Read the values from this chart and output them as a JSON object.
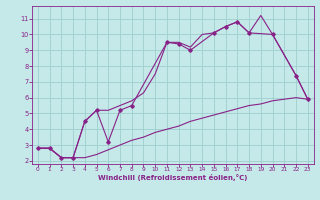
{
  "xlabel": "Windchill (Refroidissement éolien,°C)",
  "xlim": [
    -0.5,
    23.5
  ],
  "ylim": [
    1.8,
    11.8
  ],
  "xticks": [
    0,
    1,
    2,
    3,
    4,
    5,
    6,
    7,
    8,
    9,
    10,
    11,
    12,
    13,
    14,
    15,
    16,
    17,
    18,
    19,
    20,
    21,
    22,
    23
  ],
  "yticks": [
    2,
    3,
    4,
    5,
    6,
    7,
    8,
    9,
    10,
    11
  ],
  "bg_color": "#c5e8e8",
  "grid_color": "#9ecece",
  "line_color": "#882288",
  "series_main_x": [
    0,
    1,
    2,
    3,
    4,
    5,
    6,
    7,
    8,
    11,
    12,
    13,
    15,
    16,
    17,
    18,
    20,
    22,
    23
  ],
  "series_main_y": [
    2.8,
    2.8,
    2.2,
    2.2,
    4.5,
    5.2,
    3.2,
    5.2,
    5.5,
    9.5,
    9.4,
    9.0,
    10.1,
    10.5,
    10.8,
    10.1,
    10.0,
    7.4,
    5.9
  ],
  "series_low_x": [
    0,
    1,
    2,
    3,
    4,
    5,
    6,
    7,
    8,
    9,
    10,
    11,
    12,
    13,
    14,
    15,
    16,
    17,
    18,
    19,
    20,
    21,
    22,
    23
  ],
  "series_low_y": [
    2.8,
    2.8,
    2.2,
    2.2,
    2.2,
    2.4,
    2.7,
    3.0,
    3.3,
    3.5,
    3.8,
    4.0,
    4.2,
    4.5,
    4.7,
    4.9,
    5.1,
    5.3,
    5.5,
    5.6,
    5.8,
    5.9,
    6.0,
    5.9
  ],
  "series_high_x": [
    0,
    1,
    2,
    3,
    4,
    5,
    6,
    7,
    8,
    9,
    10,
    11,
    12,
    13,
    14,
    15,
    16,
    17,
    18,
    19,
    20,
    22,
    23
  ],
  "series_high_y": [
    2.8,
    2.8,
    2.2,
    2.2,
    4.5,
    5.2,
    5.2,
    5.5,
    5.8,
    6.3,
    7.5,
    9.5,
    9.5,
    9.2,
    10.0,
    10.1,
    10.5,
    10.8,
    10.1,
    11.2,
    10.0,
    7.4,
    5.9
  ]
}
